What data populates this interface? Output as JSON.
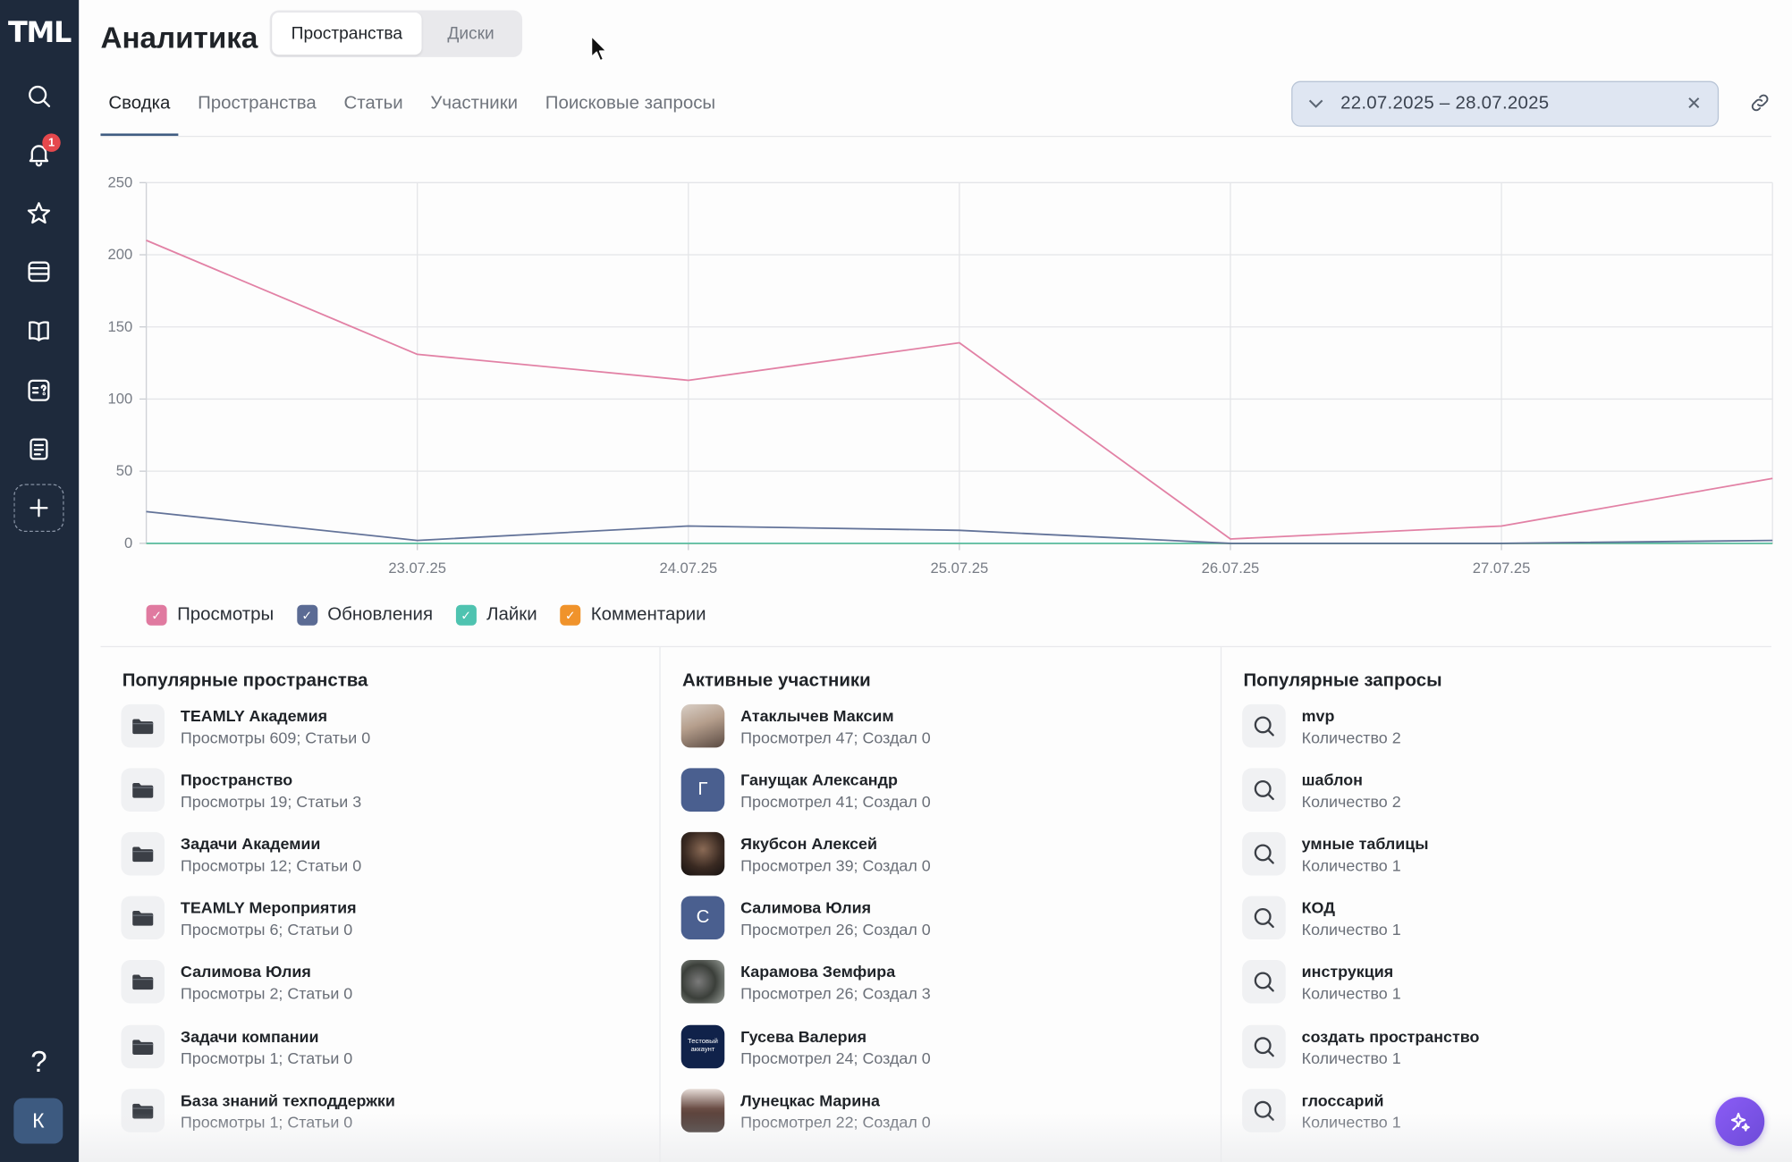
{
  "app": {
    "logo": "TML"
  },
  "sidebar": {
    "notifications_badge": "1",
    "help": "?",
    "user_initial": "К",
    "icons": [
      "search-icon",
      "bell-icon",
      "star-icon",
      "inbox-icon",
      "book-icon",
      "quiz-icon",
      "clipboard-icon",
      "plus-icon"
    ]
  },
  "header": {
    "title": "Аналитика",
    "segments": [
      "Пространства",
      "Диски"
    ]
  },
  "tabs": [
    "Сводка",
    "Пространства",
    "Статьи",
    "Участники",
    "Поисковые запросы"
  ],
  "date_range": {
    "value": "22.07.2025  –  28.07.2025"
  },
  "chart_data": {
    "type": "line",
    "x": [
      "22.07.25",
      "23.07.25",
      "24.07.25",
      "25.07.25",
      "26.07.25",
      "27.07.25",
      "28.07.25"
    ],
    "x_tick_labels": [
      "23.07.25",
      "24.07.25",
      "25.07.25",
      "26.07.25",
      "27.07.25"
    ],
    "y_ticks": [
      "0",
      "50",
      "100",
      "150",
      "200",
      "250"
    ],
    "ylim": [
      0,
      250
    ],
    "grid": true,
    "legend_position": "bottom-left",
    "series": [
      {
        "name": "Просмотры",
        "color": "#e07aa0",
        "values": [
          210,
          131,
          113,
          139,
          3,
          12,
          45
        ]
      },
      {
        "name": "Обновления",
        "color": "#5b6b94",
        "values": [
          22,
          2,
          12,
          9,
          0,
          0,
          2
        ]
      },
      {
        "name": "Лайки",
        "color": "#4fc3b0",
        "values": [
          0,
          0,
          0,
          0,
          0,
          0,
          0
        ]
      },
      {
        "name": "Комментарии",
        "color": "#f0932b",
        "values": [
          0,
          0,
          0,
          0,
          0,
          0,
          0
        ]
      }
    ]
  },
  "panels": {
    "spaces": {
      "title": "Популярные пространства",
      "items": [
        {
          "name": "TEAMLY Академия",
          "sub": "Просмотры 609; Статьи 0"
        },
        {
          "name": "Пространство",
          "sub": "Просмотры 19; Статьи 3"
        },
        {
          "name": "Задачи Академии",
          "sub": "Просмотры 12; Статьи 0"
        },
        {
          "name": "TEAMLY Мероприятия",
          "sub": "Просмотры 6; Статьи 0"
        },
        {
          "name": "Салимова Юлия",
          "sub": "Просмотры 2; Статьи 0"
        },
        {
          "name": "Задачи компании",
          "sub": "Просмотры 1; Статьи 0"
        },
        {
          "name": "База знаний техподдержки",
          "sub": "Просмотры 1; Статьи 0"
        }
      ]
    },
    "members": {
      "title": "Активные участники",
      "items": [
        {
          "name": "Атаклычев Максим",
          "sub": "Просмотрел 47; Создал 0",
          "avatar": ""
        },
        {
          "name": "Ганущак Александр",
          "sub": "Просмотрел 41; Создал 0",
          "avatar": "Г"
        },
        {
          "name": "Якубсон Алексей",
          "sub": "Просмотрел 39; Создал 0",
          "avatar": ""
        },
        {
          "name": "Салимова Юлия",
          "sub": "Просмотрел 26; Создал 0",
          "avatar": "С"
        },
        {
          "name": "Карамова Земфира",
          "sub": "Просмотрел 26; Создал 3",
          "avatar": ""
        },
        {
          "name": "Гусева Валерия",
          "sub": "Просмотрел 24; Создал 0",
          "avatar": "Тестовый аккаунт"
        },
        {
          "name": "Лунецкас Марина",
          "sub": "Просмотрел 22; Создал 0",
          "avatar": ""
        }
      ]
    },
    "queries": {
      "title": "Популярные запросы",
      "items": [
        {
          "name": "mvp",
          "sub": "Количество 2"
        },
        {
          "name": "шаблон",
          "sub": "Количество 2"
        },
        {
          "name": "умные таблицы",
          "sub": "Количество 1"
        },
        {
          "name": "КОД",
          "sub": "Количество 1"
        },
        {
          "name": "инструкция",
          "sub": "Количество 1"
        },
        {
          "name": "создать пространство",
          "sub": "Количество 1"
        },
        {
          "name": "глоссарий",
          "sub": "Количество 1"
        }
      ]
    }
  }
}
